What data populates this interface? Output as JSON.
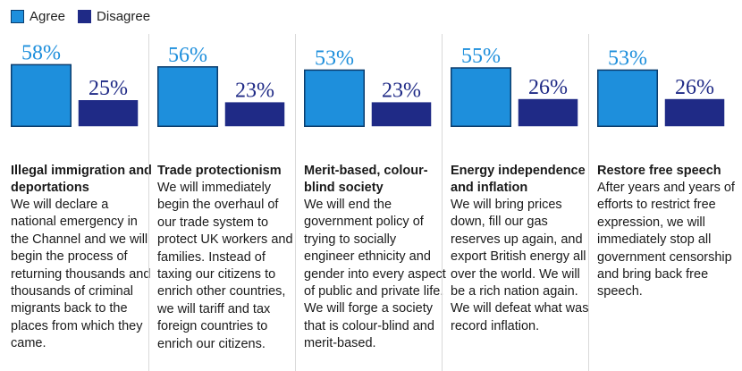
{
  "legend": [
    {
      "label": "Agree",
      "color": "#1e8fdc"
    },
    {
      "label": "Disagree",
      "color": "#1f2a86"
    }
  ],
  "chart_data": {
    "type": "bar",
    "categories": [
      "Illegal immigration and deportations",
      "Trade protectionism",
      "Merit-based, colour-blind society",
      "Energy independence and inflation",
      "Restore free speech"
    ],
    "series": [
      {
        "name": "Agree",
        "values": [
          58,
          56,
          53,
          55,
          53
        ]
      },
      {
        "name": "Disagree",
        "values": [
          25,
          23,
          23,
          26,
          26
        ]
      }
    ],
    "labels": [
      {
        "agree": "58%",
        "disagree": "25%"
      },
      {
        "agree": "56%",
        "disagree": "23%"
      },
      {
        "agree": "53%",
        "disagree": "23%"
      },
      {
        "agree": "55%",
        "disagree": "26%"
      },
      {
        "agree": "53%",
        "disagree": "26%"
      }
    ],
    "title": "",
    "xlabel": "",
    "ylabel": "",
    "ylim": [
      0,
      100
    ]
  },
  "panels": [
    {
      "title": "Illegal immigration and deportations",
      "text": "We will declare a national emergency in the Channel and we will begin the process of returning thousands and thousands of criminal migrants back to the places from which they came."
    },
    {
      "title": "Trade protectionism",
      "text": "We will immediately begin the overhaul of our trade system to protect UK workers and families. Instead of taxing our citizens to enrich other countries, we will tariff and tax foreign countries to enrich our citizens."
    },
    {
      "title": "Merit-based, colour-blind society",
      "text": "We will end the government policy of trying to socially engineer ethnicity and gender into every aspect of public and private life. We will forge a society that is colour-blind and merit-based."
    },
    {
      "title": "Energy independence and inflation",
      "text": "We will bring prices down, fill our gas reserves up again, and export British energy all over the world. We will be a rich nation again. We will defeat what was record inflation."
    },
    {
      "title": "Restore free speech",
      "text": "After years and years of efforts to restrict free expression, we will immediately stop all government censorship and bring back free speech."
    }
  ]
}
